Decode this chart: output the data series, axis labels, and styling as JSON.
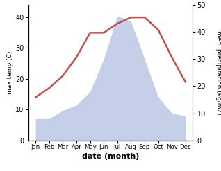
{
  "months": [
    "Jan",
    "Feb",
    "Mar",
    "Apr",
    "May",
    "Jun",
    "Jul",
    "Aug",
    "Sep",
    "Oct",
    "Nov",
    "Dec"
  ],
  "temperature": [
    14,
    17,
    21,
    27,
    35,
    35,
    38,
    40,
    40,
    36,
    27,
    19
  ],
  "precipitation": [
    8,
    8,
    11,
    13,
    18,
    30,
    46,
    44,
    30,
    16,
    10,
    9
  ],
  "temp_color": "#c0504d",
  "precip_fill_color": "#c5cfe8",
  "temp_ylim": [
    0,
    44
  ],
  "precip_ylim": [
    0,
    50
  ],
  "temp_yticks": [
    0,
    10,
    20,
    30,
    40
  ],
  "precip_yticks": [
    0,
    10,
    20,
    30,
    40,
    50
  ],
  "xlabel": "date (month)",
  "ylabel_left": "max temp (C)",
  "ylabel_right": "med. precipitation (kg/m2)",
  "background_color": "#ffffff"
}
